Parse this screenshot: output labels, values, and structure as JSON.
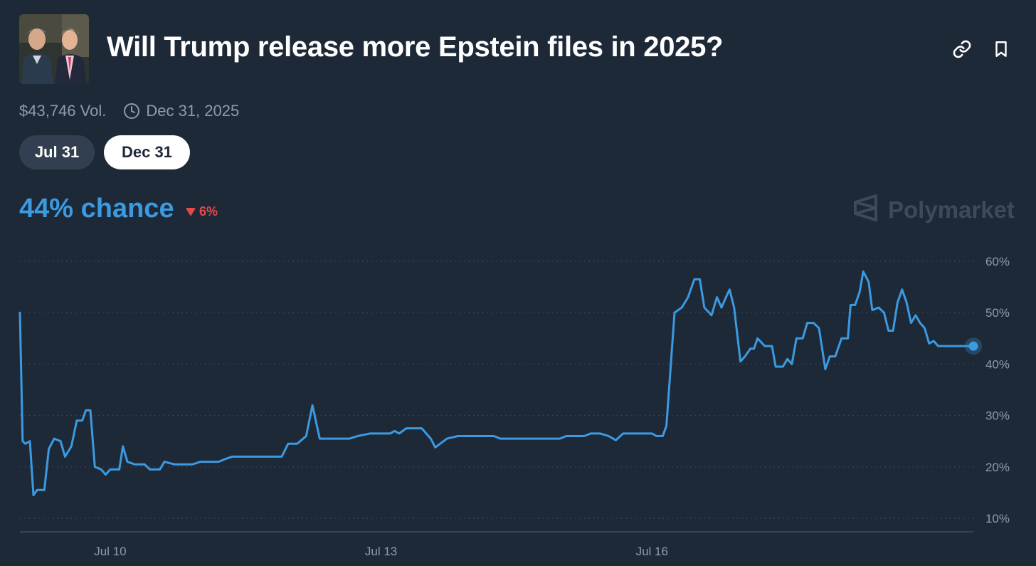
{
  "header": {
    "title": "Will Trump release more Epstein files in 2025?",
    "link_icon": "link-icon",
    "bookmark_icon": "bookmark-icon"
  },
  "meta": {
    "volume": "$43,746 Vol.",
    "end_date": "Dec 31, 2025",
    "clock_icon": "clock-icon"
  },
  "date_tabs": [
    {
      "label": "Jul 31",
      "selected": false
    },
    {
      "label": "Dec 31",
      "selected": true
    }
  ],
  "summary": {
    "chance": "44% chance",
    "delta": "6%",
    "delta_direction": "down"
  },
  "brand": {
    "name": "Polymarket"
  },
  "colors": {
    "background": "#1e2938",
    "line": "#3b9ae0",
    "delta_down": "#e34a4a",
    "grid": "#3a4759",
    "tick_text": "#8f9bab"
  },
  "chart_data": {
    "type": "line",
    "y_unit": "%",
    "ylim": [
      10,
      60
    ],
    "y_ticks": [
      10,
      20,
      30,
      40,
      50,
      60
    ],
    "y_tick_labels": [
      "10%",
      "20%",
      "30%",
      "40%",
      "50%",
      "60%"
    ],
    "y_axis_side": "right",
    "grid": "horizontal dotted",
    "x_tick_labels": [
      {
        "label": "Jul 10",
        "day": 10
      },
      {
        "label": "Jul 13",
        "day": 13
      },
      {
        "label": "Jul 16",
        "day": 16
      }
    ],
    "series": [
      {
        "points": [
          [
            9.0,
            50
          ],
          [
            9.03,
            25
          ],
          [
            9.06,
            24.5
          ],
          [
            9.11,
            25
          ],
          [
            9.15,
            14.5
          ],
          [
            9.19,
            15.5
          ],
          [
            9.27,
            15.5
          ],
          [
            9.32,
            23.5
          ],
          [
            9.38,
            25.5
          ],
          [
            9.45,
            25
          ],
          [
            9.5,
            22
          ],
          [
            9.57,
            24
          ],
          [
            9.63,
            29
          ],
          [
            9.69,
            29
          ],
          [
            9.73,
            31
          ],
          [
            9.78,
            31
          ],
          [
            9.83,
            20
          ],
          [
            9.9,
            19.5
          ],
          [
            9.95,
            18.5
          ],
          [
            10.0,
            19.5
          ],
          [
            10.1,
            19.5
          ],
          [
            10.14,
            24
          ],
          [
            10.19,
            21
          ],
          [
            10.27,
            20.5
          ],
          [
            10.38,
            20.5
          ],
          [
            10.44,
            19.5
          ],
          [
            10.55,
            19.5
          ],
          [
            10.6,
            21
          ],
          [
            10.71,
            20.5
          ],
          [
            10.91,
            20.5
          ],
          [
            11.0,
            21
          ],
          [
            11.2,
            21
          ],
          [
            11.27,
            21.5
          ],
          [
            11.35,
            22
          ],
          [
            11.9,
            22
          ],
          [
            11.97,
            24.5
          ],
          [
            12.07,
            24.5
          ],
          [
            12.17,
            26
          ],
          [
            12.24,
            32
          ],
          [
            12.32,
            25.5
          ],
          [
            12.65,
            25.5
          ],
          [
            12.74,
            26
          ],
          [
            12.88,
            26.5
          ],
          [
            13.1,
            26.5
          ],
          [
            13.15,
            27
          ],
          [
            13.2,
            26.5
          ],
          [
            13.28,
            27.5
          ],
          [
            13.45,
            27.5
          ],
          [
            13.55,
            25.5
          ],
          [
            13.6,
            23.8
          ],
          [
            13.73,
            25.5
          ],
          [
            13.85,
            26
          ],
          [
            14.25,
            26
          ],
          [
            14.32,
            25.5
          ],
          [
            14.98,
            25.5
          ],
          [
            15.05,
            26
          ],
          [
            15.25,
            26
          ],
          [
            15.32,
            26.5
          ],
          [
            15.43,
            26.5
          ],
          [
            15.52,
            26
          ],
          [
            15.6,
            25.2
          ],
          [
            15.68,
            26.5
          ],
          [
            15.9,
            26.5
          ],
          [
            16.0,
            26.5
          ],
          [
            16.05,
            26
          ],
          [
            16.12,
            26
          ],
          [
            16.16,
            28
          ],
          [
            16.25,
            50
          ],
          [
            16.33,
            51
          ],
          [
            16.4,
            53
          ],
          [
            16.47,
            56.5
          ],
          [
            16.53,
            56.5
          ],
          [
            16.58,
            51
          ],
          [
            16.66,
            49.5
          ],
          [
            16.72,
            53
          ],
          [
            16.77,
            51
          ],
          [
            16.82,
            53
          ],
          [
            16.86,
            54.5
          ],
          [
            16.91,
            51
          ],
          [
            16.98,
            40.5
          ],
          [
            17.03,
            41.5
          ],
          [
            17.09,
            43
          ],
          [
            17.13,
            43
          ],
          [
            17.17,
            45
          ],
          [
            17.25,
            43.5
          ],
          [
            17.33,
            43.5
          ],
          [
            17.37,
            39.5
          ],
          [
            17.45,
            39.5
          ],
          [
            17.5,
            41
          ],
          [
            17.55,
            40
          ],
          [
            17.6,
            45
          ],
          [
            17.67,
            45
          ],
          [
            17.72,
            48
          ],
          [
            17.79,
            48
          ],
          [
            17.85,
            47
          ],
          [
            17.92,
            39
          ],
          [
            17.97,
            41.5
          ],
          [
            18.03,
            41.5
          ],
          [
            18.1,
            45
          ],
          [
            18.17,
            45
          ],
          [
            18.2,
            51.5
          ],
          [
            18.25,
            51.5
          ],
          [
            18.3,
            54
          ],
          [
            18.34,
            58
          ],
          [
            18.4,
            56
          ],
          [
            18.44,
            50.5
          ],
          [
            18.51,
            51
          ],
          [
            18.57,
            50
          ],
          [
            18.62,
            46.5
          ],
          [
            18.67,
            46.5
          ],
          [
            18.72,
            52
          ],
          [
            18.77,
            54.5
          ],
          [
            18.82,
            52
          ],
          [
            18.87,
            48
          ],
          [
            18.92,
            49.5
          ],
          [
            18.97,
            48
          ],
          [
            19.02,
            47
          ],
          [
            19.07,
            44
          ],
          [
            19.12,
            44.5
          ],
          [
            19.17,
            43.5
          ],
          [
            19.5,
            43.5
          ],
          [
            19.56,
            43.5
          ]
        ]
      }
    ]
  }
}
